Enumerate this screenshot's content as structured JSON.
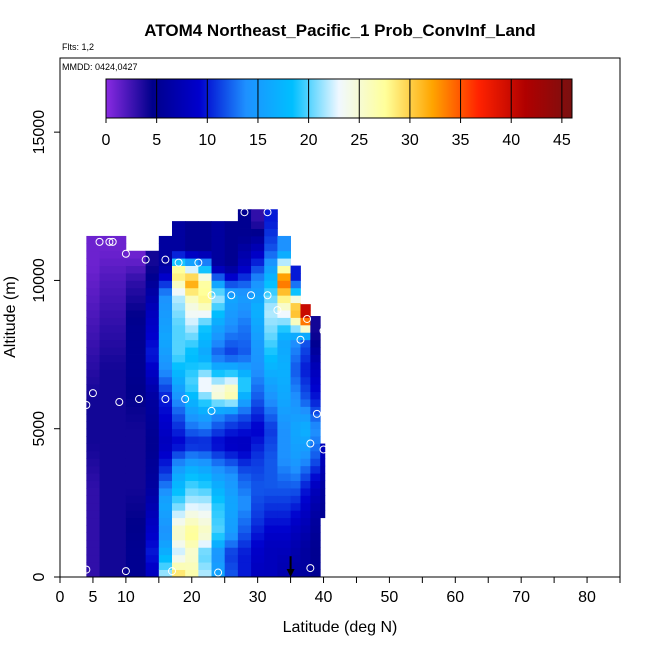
{
  "chart_data": {
    "type": "heatmap",
    "title": "ATOM4 Northeast_Pacific_1 Prob_ConvInf_Land",
    "flights_note": "Flts: 1,2",
    "dates_note": "MMDD: 0424,0427",
    "xlabel": "Latitude (deg N)",
    "ylabel": "Altitude (m)",
    "xlim": [
      0,
      85
    ],
    "ylim": [
      0,
      17500
    ],
    "x_ticks": [
      0,
      5,
      10,
      20,
      30,
      40,
      50,
      60,
      70,
      80
    ],
    "x_minor_ticks": [
      15,
      25,
      35,
      45,
      55,
      65,
      75,
      85
    ],
    "y_ticks": [
      0,
      5000,
      10000,
      15000
    ],
    "colorbar": {
      "min": 0,
      "max": 46,
      "ticks": [
        0,
        5,
        10,
        15,
        20,
        25,
        30,
        35,
        40,
        45
      ],
      "stops": [
        "#8a2be2",
        "#00008b",
        "#0000cd",
        "#1e90ff",
        "#00bfff",
        "#f0f8ff",
        "#ffff99",
        "#ffa500",
        "#ff2200",
        "#b00000",
        "#7a1010"
      ]
    },
    "columns": [
      {
        "x0": 4,
        "x1": 6,
        "ytop": 11500,
        "vals": [
          [
            0,
            3
          ],
          [
            1500,
            3
          ],
          [
            3000,
            3
          ],
          [
            4500,
            4
          ],
          [
            6000,
            4
          ],
          [
            7500,
            3
          ],
          [
            9000,
            2
          ],
          [
            10500,
            1
          ]
        ]
      },
      {
        "x0": 6,
        "x1": 10,
        "ytop": 11500,
        "vals": [
          [
            0,
            4
          ],
          [
            1000,
            4
          ],
          [
            3000,
            4
          ],
          [
            5000,
            4
          ],
          [
            7000,
            4
          ],
          [
            8500,
            3
          ],
          [
            10000,
            2
          ],
          [
            11000,
            1
          ]
        ]
      },
      {
        "x0": 10,
        "x1": 13,
        "ytop": 11000,
        "vals": [
          [
            0,
            5
          ],
          [
            1000,
            5
          ],
          [
            3000,
            4
          ],
          [
            5000,
            4
          ],
          [
            7000,
            5
          ],
          [
            8500,
            5
          ],
          [
            10000,
            3
          ],
          [
            10800,
            1
          ]
        ]
      },
      {
        "x0": 13,
        "x1": 15,
        "ytop": 11000,
        "vals": [
          [
            0,
            8
          ],
          [
            800,
            10
          ],
          [
            2000,
            8
          ],
          [
            3000,
            6
          ],
          [
            4500,
            5
          ],
          [
            6000,
            6
          ],
          [
            7500,
            10
          ],
          [
            9000,
            8
          ],
          [
            10500,
            4
          ]
        ]
      },
      {
        "x0": 15,
        "x1": 17,
        "ytop": 11500,
        "vals": [
          [
            0,
            22
          ],
          [
            800,
            17
          ],
          [
            1500,
            14
          ],
          [
            2500,
            16
          ],
          [
            3500,
            11
          ],
          [
            4500,
            8
          ],
          [
            6000,
            10
          ],
          [
            7000,
            14
          ],
          [
            8000,
            16
          ],
          [
            9500,
            14
          ],
          [
            10500,
            6
          ]
        ]
      },
      {
        "x0": 17,
        "x1": 19,
        "ytop": 12000,
        "vals": [
          [
            0,
            30
          ],
          [
            800,
            22
          ],
          [
            1500,
            26
          ],
          [
            2500,
            20
          ],
          [
            3500,
            16
          ],
          [
            4500,
            9
          ],
          [
            5500,
            12
          ],
          [
            6500,
            16
          ],
          [
            7500,
            20
          ],
          [
            8500,
            20
          ],
          [
            9500,
            22
          ],
          [
            10300,
            30
          ],
          [
            11000,
            6
          ]
        ]
      },
      {
        "x0": 19,
        "x1": 21,
        "ytop": 12000,
        "vals": [
          [
            0,
            27
          ],
          [
            800,
            25
          ],
          [
            1500,
            28
          ],
          [
            2500,
            22
          ],
          [
            3500,
            18
          ],
          [
            4500,
            10
          ],
          [
            5500,
            15
          ],
          [
            6500,
            20
          ],
          [
            7500,
            18
          ],
          [
            8500,
            22
          ],
          [
            9300,
            25
          ],
          [
            10000,
            33
          ],
          [
            11000,
            5
          ]
        ]
      },
      {
        "x0": 21,
        "x1": 23,
        "ytop": 12000,
        "vals": [
          [
            0,
            22
          ],
          [
            800,
            20
          ],
          [
            1500,
            26
          ],
          [
            2500,
            22
          ],
          [
            3500,
            17
          ],
          [
            4500,
            10
          ],
          [
            5500,
            16
          ],
          [
            6500,
            24
          ],
          [
            7500,
            16
          ],
          [
            8500,
            19
          ],
          [
            9300,
            28
          ],
          [
            10000,
            27
          ],
          [
            11000,
            5
          ]
        ]
      },
      {
        "x0": 23,
        "x1": 25,
        "ytop": 12000,
        "vals": [
          [
            0,
            16
          ],
          [
            800,
            14
          ],
          [
            1500,
            20
          ],
          [
            2500,
            19
          ],
          [
            3500,
            15
          ],
          [
            4500,
            9
          ],
          [
            5500,
            14
          ],
          [
            6200,
            26
          ],
          [
            7500,
            12
          ],
          [
            8500,
            16
          ],
          [
            9500,
            22
          ],
          [
            10500,
            6
          ]
        ]
      },
      {
        "x0": 25,
        "x1": 27,
        "ytop": 12000,
        "vals": [
          [
            0,
            12
          ],
          [
            800,
            11
          ],
          [
            1500,
            15
          ],
          [
            2500,
            16
          ],
          [
            3500,
            14
          ],
          [
            4500,
            8
          ],
          [
            5500,
            13
          ],
          [
            6200,
            28
          ],
          [
            7500,
            11
          ],
          [
            8500,
            14
          ],
          [
            9500,
            16
          ],
          [
            10500,
            5
          ]
        ]
      },
      {
        "x0": 27,
        "x1": 29,
        "ytop": 12400,
        "vals": [
          [
            0,
            10
          ],
          [
            800,
            10
          ],
          [
            1500,
            12
          ],
          [
            2500,
            14
          ],
          [
            3500,
            12
          ],
          [
            4500,
            8
          ],
          [
            5500,
            12
          ],
          [
            6500,
            20
          ],
          [
            7500,
            12
          ],
          [
            8500,
            13
          ],
          [
            9500,
            15
          ],
          [
            10500,
            8
          ],
          [
            11500,
            5
          ]
        ]
      },
      {
        "x0": 29,
        "x1": 31,
        "ytop": 12400,
        "vals": [
          [
            0,
            8
          ],
          [
            1000,
            9
          ],
          [
            2000,
            11
          ],
          [
            3000,
            12
          ],
          [
            4000,
            11
          ],
          [
            5000,
            9
          ],
          [
            6000,
            12
          ],
          [
            7000,
            14
          ],
          [
            8000,
            15
          ],
          [
            9000,
            17
          ],
          [
            10000,
            14
          ],
          [
            11000,
            8
          ],
          [
            12000,
            3
          ]
        ]
      },
      {
        "x0": 31,
        "x1": 33,
        "ytop": 12400,
        "vals": [
          [
            0,
            8
          ],
          [
            1000,
            8
          ],
          [
            2000,
            10
          ],
          [
            3000,
            12
          ],
          [
            4000,
            12
          ],
          [
            5000,
            11
          ],
          [
            6000,
            14
          ],
          [
            7000,
            17
          ],
          [
            8000,
            20
          ],
          [
            9000,
            22
          ],
          [
            10000,
            18
          ],
          [
            11000,
            12
          ],
          [
            12000,
            10
          ]
        ]
      },
      {
        "x0": 33,
        "x1": 35,
        "ytop": 11500,
        "vals": [
          [
            0,
            7
          ],
          [
            1000,
            8
          ],
          [
            2000,
            10
          ],
          [
            3000,
            12
          ],
          [
            4000,
            14
          ],
          [
            5000,
            14
          ],
          [
            6000,
            16
          ],
          [
            7000,
            17
          ],
          [
            8000,
            16
          ],
          [
            9000,
            24
          ],
          [
            10000,
            35
          ],
          [
            11000,
            14
          ]
        ]
      },
      {
        "x0": 35,
        "x1": 36.5,
        "ytop": 10500,
        "vals": [
          [
            0,
            6
          ],
          [
            1000,
            7
          ],
          [
            2000,
            9
          ],
          [
            3000,
            12
          ],
          [
            4000,
            15
          ],
          [
            5000,
            16
          ],
          [
            6000,
            14
          ],
          [
            7000,
            12
          ],
          [
            8000,
            14
          ],
          [
            9000,
            33
          ],
          [
            10000,
            10
          ]
        ]
      },
      {
        "x0": 36.5,
        "x1": 38,
        "ytop": 9200,
        "vals": [
          [
            0,
            6
          ],
          [
            1000,
            6
          ],
          [
            2000,
            8
          ],
          [
            3000,
            10
          ],
          [
            4000,
            14
          ],
          [
            5000,
            17
          ],
          [
            6000,
            12
          ],
          [
            7000,
            10
          ],
          [
            8000,
            12
          ],
          [
            8800,
            40
          ]
        ]
      },
      {
        "x0": 38,
        "x1": 39.5,
        "ytop": 8800,
        "vals": [
          [
            0,
            5
          ],
          [
            1000,
            5
          ],
          [
            2000,
            6
          ],
          [
            3000,
            8
          ],
          [
            4000,
            12
          ],
          [
            5000,
            14
          ],
          [
            6000,
            10
          ],
          [
            7000,
            8
          ],
          [
            8200,
            4
          ]
        ]
      },
      {
        "x0": 39.5,
        "x1": 40.2,
        "ytop": 4500,
        "vals": [
          [
            2000,
            5
          ],
          [
            3000,
            6
          ],
          [
            4000,
            8
          ]
        ]
      }
    ],
    "points": [
      {
        "x": 4,
        "y": 250
      },
      {
        "x": 10,
        "y": 200
      },
      {
        "x": 17,
        "y": 200
      },
      {
        "x": 24,
        "y": 150
      },
      {
        "x": 38,
        "y": 300
      },
      {
        "x": 4,
        "y": 5800
      },
      {
        "x": 5,
        "y": 6200
      },
      {
        "x": 9,
        "y": 5900
      },
      {
        "x": 12,
        "y": 6000
      },
      {
        "x": 16,
        "y": 6000
      },
      {
        "x": 19,
        "y": 6000
      },
      {
        "x": 23,
        "y": 5600
      },
      {
        "x": 38,
        "y": 4500
      },
      {
        "x": 39,
        "y": 5500
      },
      {
        "x": 40,
        "y": 4300
      },
      {
        "x": 6,
        "y": 11300
      },
      {
        "x": 7.5,
        "y": 11300
      },
      {
        "x": 8,
        "y": 11300
      },
      {
        "x": 10,
        "y": 10900
      },
      {
        "x": 13,
        "y": 10700
      },
      {
        "x": 14,
        "y": 11300
      },
      {
        "x": 16,
        "y": 10700
      },
      {
        "x": 18,
        "y": 10600
      },
      {
        "x": 21,
        "y": 10600
      },
      {
        "x": 23,
        "y": 9500
      },
      {
        "x": 26,
        "y": 9500
      },
      {
        "x": 29,
        "y": 9500
      },
      {
        "x": 31.5,
        "y": 9500
      },
      {
        "x": 33,
        "y": 9000
      },
      {
        "x": 28,
        "y": 12300
      },
      {
        "x": 31.5,
        "y": 12300
      },
      {
        "x": 36.5,
        "y": 8000
      },
      {
        "x": 37.5,
        "y": 8700
      },
      {
        "x": 40,
        "y": 8300
      }
    ],
    "arrow": {
      "x": 35,
      "y_from": 700,
      "y_to": 0
    }
  }
}
